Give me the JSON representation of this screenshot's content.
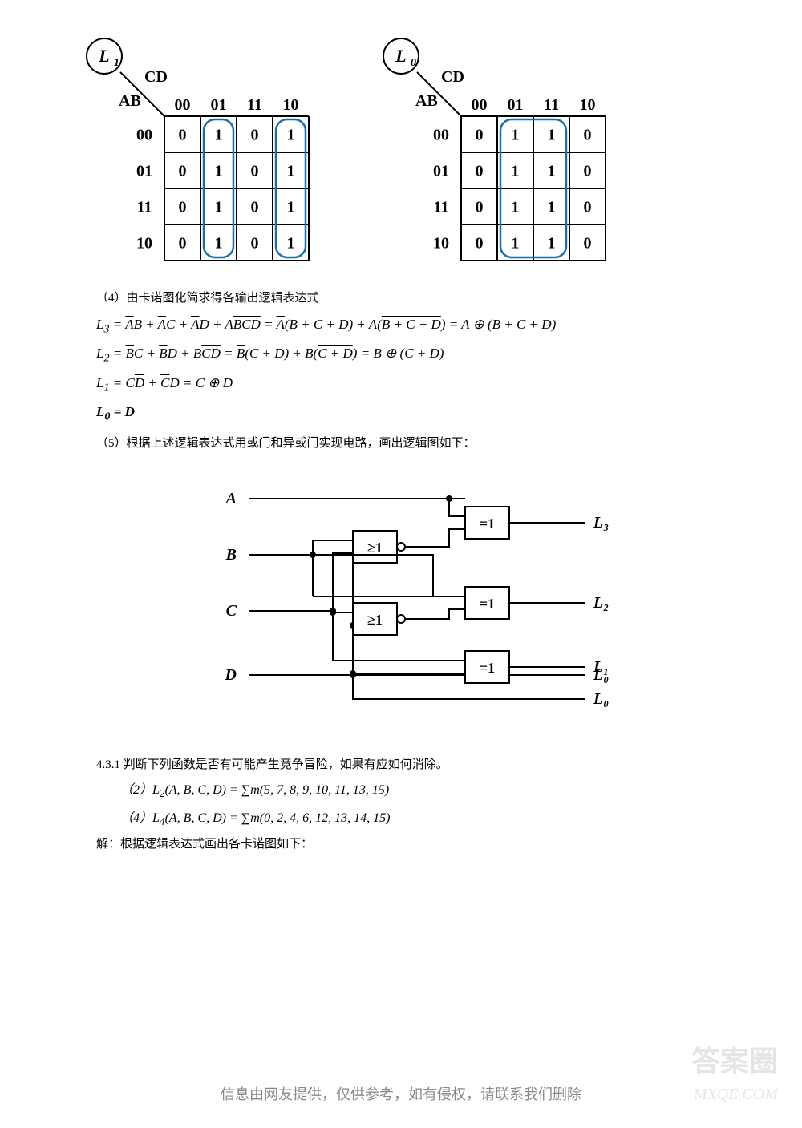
{
  "kmaps": {
    "col_headers": [
      "00",
      "01",
      "11",
      "10"
    ],
    "row_headers": [
      "00",
      "01",
      "11",
      "10"
    ],
    "cd_label": "CD",
    "ab_label": "AB",
    "L1": {
      "title": "L1",
      "cells": [
        [
          "0",
          "1",
          "0",
          "1"
        ],
        [
          "0",
          "1",
          "0",
          "1"
        ],
        [
          "0",
          "1",
          "0",
          "1"
        ],
        [
          "0",
          "1",
          "0",
          "1"
        ]
      ],
      "groups": [
        {
          "col": 1,
          "rows": [
            0,
            3
          ],
          "color": "#1a6fa3"
        },
        {
          "col": 3,
          "rows": [
            0,
            3
          ],
          "color": "#1a6fa3"
        }
      ]
    },
    "L0": {
      "title": "L0",
      "cells": [
        [
          "0",
          "1",
          "1",
          "0"
        ],
        [
          "0",
          "1",
          "1",
          "0"
        ],
        [
          "0",
          "1",
          "1",
          "0"
        ],
        [
          "0",
          "1",
          "1",
          "0"
        ]
      ],
      "groups": [
        {
          "cols": [
            1,
            2
          ],
          "rows": [
            0,
            3
          ],
          "color": "#1a6fa3"
        }
      ]
    },
    "cell_size": 45,
    "border_color": "#000",
    "group_stroke_width": 2.5
  },
  "text4": "（4）由卡诺图化简求得各输出逻辑表达式",
  "eq_L3": "L<sub>3</sub> = <span class='overline'>A</span>B + <span class='overline'>A</span>C + <span class='overline'>A</span>D + A<span class='overline'>B</span><span class='overline'>C</span><span class='overline'>D</span> = <span class='overline'>A</span>(B + C + D) + A(<span class='overline'>B + C + D</span>) = A ⊕ (B + C + D)",
  "eq_L2": "L<sub>2</sub> = <span class='overline'>B</span>C + <span class='overline'>B</span>D + B<span class='overline'>C</span><span class='overline'>D</span> = <span class='overline'>B</span>(C + D) + B(<span class='overline'>C + D</span>) = B ⊕ (C + D)",
  "eq_L1": "L<sub>1</sub> = C<span class='overline'>D</span> + <span class='overline'>C</span>D = C ⊕ D",
  "eq_L0": "L<sub>0</sub> = D",
  "text5": "（5）根据上述逻辑表达式用或门和异或门实现电路，画出逻辑图如下：",
  "circuit": {
    "inputs": [
      "A",
      "B",
      "C",
      "D"
    ],
    "outputs": [
      "L₃",
      "L₂",
      "L₁",
      "L₀"
    ],
    "or_label": "≥1",
    "xor_label": "=1"
  },
  "problem_431": "4.3.1 判断下列函数是否有可能产生竞争冒险，如果有应如何消除。",
  "problem_431_2": "（2）L<sub>2</sub>(A, B, C, D) = ∑m(5, 7, 8, 9, 10, 11, 13, 15)",
  "problem_431_4": "（4）L<sub>4</sub>(A, B, C, D) = ∑m(0, 2, 4, 6, 12, 13, 14, 15)",
  "solution_text": "解：根据逻辑表达式画出各卡诺图如下：",
  "watermark1": "答案圈",
  "watermark2": "MXQE.COM",
  "footer": "信息由网友提供，仅供参考，如有侵权，请联系我们删除"
}
